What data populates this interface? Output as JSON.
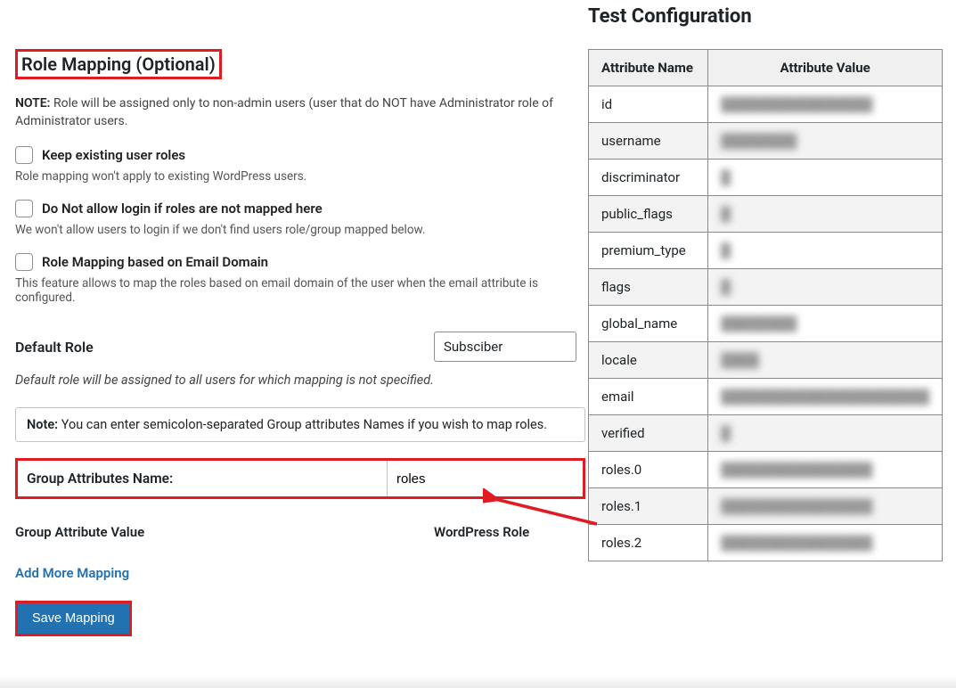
{
  "left": {
    "heading": "Role Mapping (Optional)",
    "note_prefix": "NOTE:",
    "note_text": " Role will be assigned only to non-admin users (user that do NOT have Administrator role of Administrator users.",
    "checkboxes": [
      {
        "label": "Keep existing user roles",
        "desc": "Role mapping won't apply to existing WordPress users."
      },
      {
        "label": "Do Not allow login if roles are not mapped here",
        "desc": "We won't allow users to login if we don't find users role/group mapped below."
      },
      {
        "label": "Role Mapping based on Email Domain",
        "desc": "This feature allows to map the roles based on email domain of the user when the email attribute is configured."
      }
    ],
    "default_role_label": "Default Role",
    "default_role_value": "Subsciber",
    "default_role_desc": "Default role will be assigned to all users for which mapping is not specified.",
    "note_banner_prefix": "Note:",
    "note_banner_text": " You can enter semicolon-separated Group attributes Names if you wish to map roles.",
    "group_attr_label": "Group Attributes Name:",
    "group_attr_value": "roles",
    "col1": "Group Attribute Value",
    "col2": "WordPress Role",
    "add_more": "Add More Mapping",
    "save_btn": "Save Mapping"
  },
  "right": {
    "heading": "Test Configuration",
    "columns": [
      "Attribute Name",
      "Attribute Value"
    ],
    "rows": [
      {
        "name": "id",
        "value": "████████████████"
      },
      {
        "name": "username",
        "value": "████████"
      },
      {
        "name": "discriminator",
        "value": "█"
      },
      {
        "name": "public_flags",
        "value": "█"
      },
      {
        "name": "premium_type",
        "value": "█"
      },
      {
        "name": "flags",
        "value": "█"
      },
      {
        "name": "global_name",
        "value": "████████"
      },
      {
        "name": "locale",
        "value": "████"
      },
      {
        "name": "email",
        "value": "██████████████████████"
      },
      {
        "name": "verified",
        "value": "█"
      },
      {
        "name": "roles.0",
        "value": "████████████████"
      },
      {
        "name": "roles.1",
        "value": "████████████████"
      },
      {
        "name": "roles.2",
        "value": "████████████████"
      }
    ]
  },
  "colors": {
    "highlight_border": "#e11b22",
    "link": "#2271b1",
    "button_bg": "#2271b1"
  }
}
